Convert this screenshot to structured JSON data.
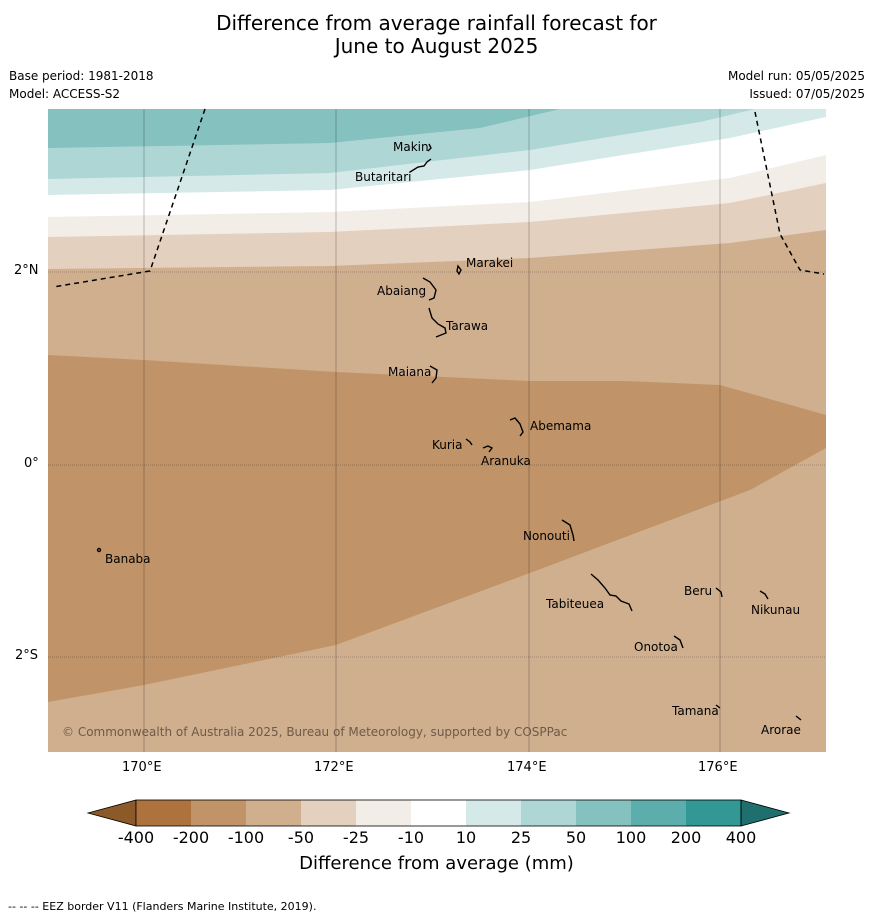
{
  "header": {
    "title_line1": "Difference from average rainfall forecast for",
    "title_line2": "June to August 2025",
    "base_period": "Base period: 1981-2018",
    "model": "Model: ACCESS-S2",
    "model_run": "Model run: 05/05/2025",
    "issued": "Issued: 07/05/2025"
  },
  "map": {
    "copyright": "© Commonwealth of Australia 2025, Bureau of Meteorology, supported by COSPPac",
    "lat_labels": [
      "2°N",
      "0°",
      "2°S"
    ],
    "lon_labels": [
      "170°E",
      "172°E",
      "174°E",
      "176°E"
    ],
    "places": {
      "makin": "Makin",
      "butaritari": "Butaritari",
      "marakei": "Marakei",
      "abaiang": "Abaiang",
      "tarawa": "Tarawa",
      "maiana": "Maiana",
      "abemama": "Abemama",
      "kuria": "Kuria",
      "aranuka": "Aranuka",
      "nonouti": "Nonouti",
      "banaba": "Banaba",
      "beru": "Beru",
      "nikunau": "Nikunau",
      "tabiteuea": "Tabiteuea",
      "onotoa": "Onotoa",
      "tamana": "Tamana",
      "arorae": "Arorae"
    }
  },
  "colorbar": {
    "title": "Difference from average (mm)",
    "ticks": [
      "-400",
      "-200",
      "-100",
      "-50",
      "-25",
      "-10",
      "10",
      "25",
      "50",
      "100",
      "200",
      "400"
    ],
    "colors": [
      "#8c5a29",
      "#ae733d",
      "#c09468",
      "#d0af8e",
      "#e3d0be",
      "#f2ede6",
      "#ffffff",
      "#d5e9e9",
      "#aed6d5",
      "#84c1bf",
      "#5caeac",
      "#319896",
      "#1f6f6e"
    ]
  },
  "footer": "--  --  -- EEZ border V11 (Flanders Marine Institute, 2019)."
}
